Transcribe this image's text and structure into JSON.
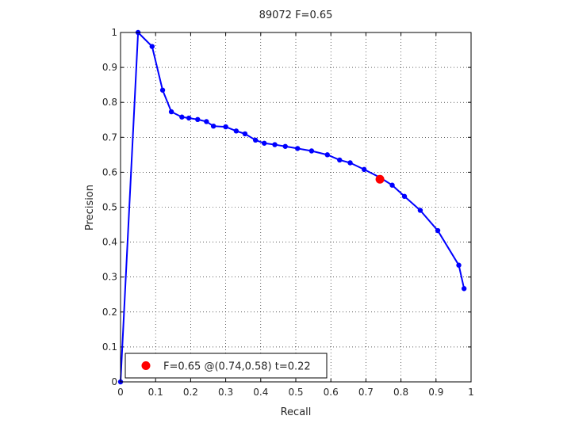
{
  "chart_data": {
    "type": "line",
    "title": "89072 F=0.65",
    "xlabel": "Recall",
    "ylabel": "Precision",
    "xlim": [
      0,
      1
    ],
    "ylim": [
      0,
      1
    ],
    "grid": true,
    "legend_position": "bottom-left",
    "xticks": [
      "0",
      "0.1",
      "0.2",
      "0.3",
      "0.4",
      "0.5",
      "0.6",
      "0.7",
      "0.8",
      "0.9",
      "1"
    ],
    "yticks": [
      "0",
      "0.1",
      "0.2",
      "0.3",
      "0.4",
      "0.5",
      "0.6",
      "0.7",
      "0.8",
      "0.9",
      "1"
    ],
    "series": [
      {
        "color": "#0000ff",
        "points": [
          [
            0.0,
            0.0
          ],
          [
            0.05,
            1.0
          ],
          [
            0.09,
            0.96
          ],
          [
            0.12,
            0.835
          ],
          [
            0.145,
            0.773
          ],
          [
            0.175,
            0.758
          ],
          [
            0.195,
            0.755
          ],
          [
            0.22,
            0.751
          ],
          [
            0.245,
            0.745
          ],
          [
            0.265,
            0.732
          ],
          [
            0.3,
            0.73
          ],
          [
            0.33,
            0.718
          ],
          [
            0.355,
            0.71
          ],
          [
            0.385,
            0.692
          ],
          [
            0.41,
            0.683
          ],
          [
            0.44,
            0.679
          ],
          [
            0.47,
            0.674
          ],
          [
            0.505,
            0.668
          ],
          [
            0.545,
            0.661
          ],
          [
            0.59,
            0.65
          ],
          [
            0.625,
            0.635
          ],
          [
            0.655,
            0.627
          ],
          [
            0.695,
            0.608
          ],
          [
            0.74,
            0.585
          ],
          [
            0.775,
            0.563
          ],
          [
            0.81,
            0.531
          ],
          [
            0.855,
            0.491
          ],
          [
            0.905,
            0.433
          ],
          [
            0.965,
            0.334
          ],
          [
            0.98,
            0.267
          ]
        ]
      }
    ],
    "highlight": {
      "x": 0.74,
      "y": 0.58,
      "color": "#ff0000"
    },
    "legend": [
      {
        "label": "F=0.65 @(0.74,0.58) t=0.22",
        "color": "#ff0000",
        "marker": "circle"
      }
    ]
  }
}
